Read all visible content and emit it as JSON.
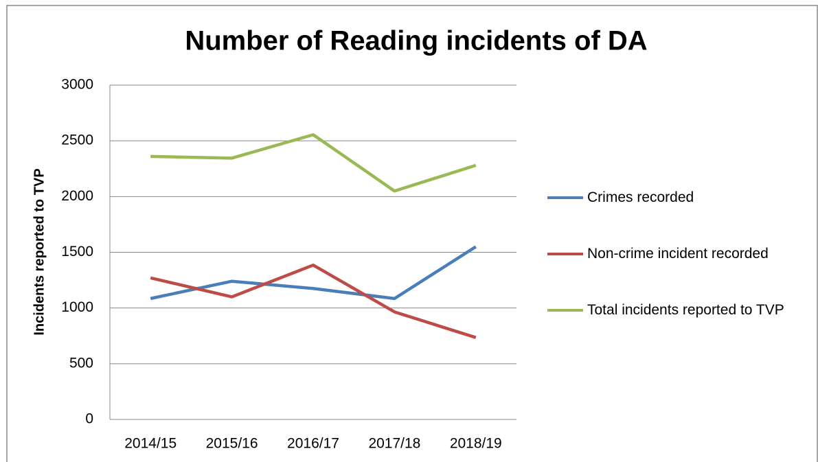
{
  "chart_data": {
    "type": "line",
    "title": "Number of Reading incidents of DA",
    "y_label": "Incidents reported to TVP",
    "categories": [
      "2014/15",
      "2015/16",
      "2016/17",
      "2017/18",
      "2018/19"
    ],
    "series": [
      {
        "name": "Crimes recorded",
        "color": "#4a7ebb",
        "values": [
          1085,
          1240,
          1175,
          1085,
          1550
        ]
      },
      {
        "name": "Non-crime incident recorded",
        "color": "#be4b48",
        "values": [
          1270,
          1100,
          1385,
          965,
          735
        ]
      },
      {
        "name": "Total incidents reported to TVP",
        "color": "#98b954",
        "values": [
          2360,
          2345,
          2555,
          2050,
          2280
        ]
      }
    ],
    "ylim": [
      0,
      3000
    ],
    "yticks": [
      0,
      500,
      1000,
      1500,
      2000,
      2500,
      3000
    ],
    "grid": true,
    "legend": "right"
  }
}
